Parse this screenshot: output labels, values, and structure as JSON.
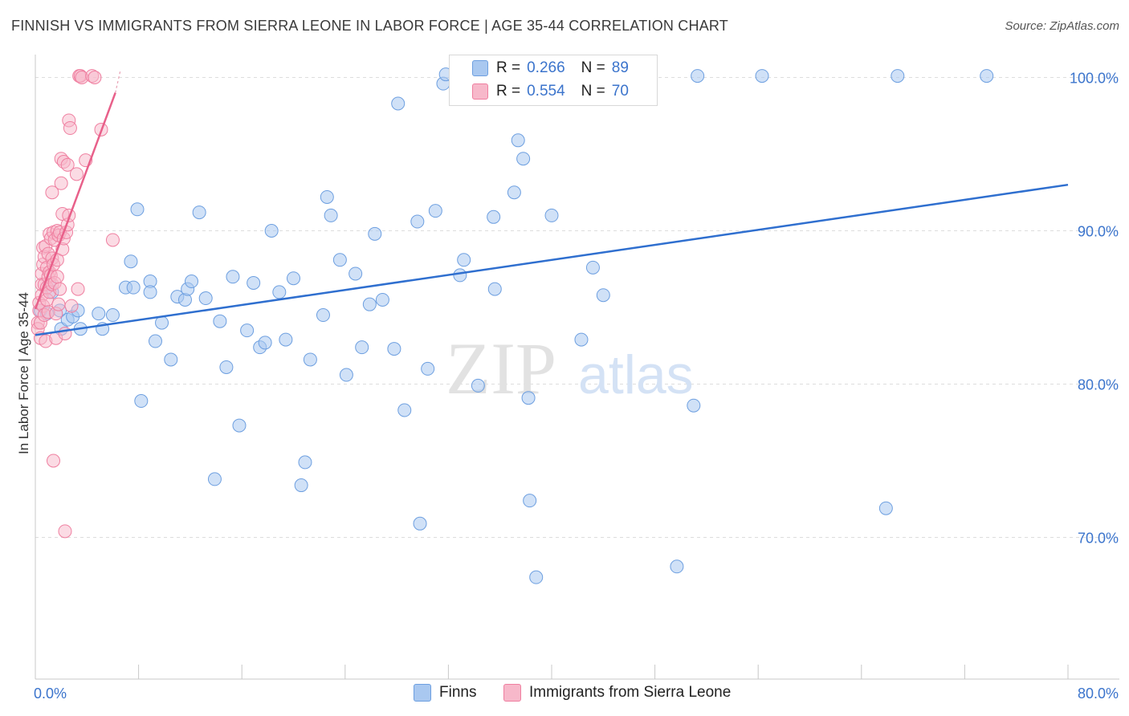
{
  "header": {
    "title": "FINNISH VS IMMIGRANTS FROM SIERRA LEONE IN LABOR FORCE | AGE 35-44 CORRELATION CHART",
    "source": "Source: ZipAtlas.com"
  },
  "legend": {
    "rows": [
      {
        "r_label": "R =",
        "r_value": "0.266",
        "n_label": "N =",
        "n_value": "89"
      },
      {
        "r_label": "R =",
        "r_value": "0.554",
        "n_label": "N =",
        "n_value": "70"
      }
    ]
  },
  "bottom_legend": {
    "finns": "Finns",
    "sierra": "Immigrants from Sierra Leone"
  },
  "watermark": {
    "zip": "ZIP",
    "atlas": "atlas"
  },
  "colors": {
    "finns_fill": "#a9c8f0",
    "finns_stroke": "#6d9fe0",
    "finns_line": "#2f6fcf",
    "sierra_fill": "#f7b8ca",
    "sierra_stroke": "#ef7fa0",
    "sierra_line": "#e8608a",
    "tick_label": "#3b74cc",
    "grid": "#dddddd"
  },
  "chart_data": {
    "type": "scatter",
    "title": "FINNISH VS IMMIGRANTS FROM SIERRA LEONE IN LABOR FORCE | AGE 35-44 CORRELATION CHART",
    "xlabel": "",
    "ylabel": "In Labor Force | Age 35-44",
    "xlim": [
      0,
      80
    ],
    "ylim": [
      60,
      102
    ],
    "x_tick_labels": [
      "0.0%",
      "80.0%"
    ],
    "y_ticks": [
      70,
      80,
      90,
      100
    ],
    "y_tick_labels": [
      "70.0%",
      "80.0%",
      "90.0%",
      "100.0%"
    ],
    "series": [
      {
        "name": "Finns",
        "R": 0.266,
        "N": 89,
        "trend": {
          "x": [
            0,
            80
          ],
          "y": [
            83.2,
            93.0
          ]
        },
        "points": [
          [
            0.4,
            84.8
          ],
          [
            0.9,
            84.6
          ],
          [
            1.1,
            86.6
          ],
          [
            1.3,
            86.0
          ],
          [
            1.9,
            84.8
          ],
          [
            2.0,
            83.6
          ],
          [
            2.5,
            84.2
          ],
          [
            2.9,
            84.4
          ],
          [
            3.3,
            84.8
          ],
          [
            3.5,
            83.6
          ],
          [
            4.9,
            84.6
          ],
          [
            5.2,
            83.6
          ],
          [
            6.0,
            84.5
          ],
          [
            7.0,
            86.3
          ],
          [
            7.4,
            88.0
          ],
          [
            7.6,
            86.3
          ],
          [
            7.9,
            91.4
          ],
          [
            8.2,
            78.9
          ],
          [
            8.9,
            86.7
          ],
          [
            8.9,
            86.0
          ],
          [
            9.3,
            82.8
          ],
          [
            9.8,
            84.0
          ],
          [
            10.5,
            81.6
          ],
          [
            11.0,
            85.7
          ],
          [
            11.6,
            85.5
          ],
          [
            11.8,
            86.2
          ],
          [
            12.1,
            86.7
          ],
          [
            12.7,
            91.2
          ],
          [
            13.2,
            85.6
          ],
          [
            13.9,
            73.8
          ],
          [
            14.3,
            84.1
          ],
          [
            14.8,
            81.1
          ],
          [
            15.3,
            87.0
          ],
          [
            15.8,
            77.3
          ],
          [
            16.4,
            83.5
          ],
          [
            16.9,
            86.6
          ],
          [
            17.4,
            82.4
          ],
          [
            17.8,
            82.7
          ],
          [
            18.3,
            90.0
          ],
          [
            18.9,
            86.0
          ],
          [
            19.4,
            82.9
          ],
          [
            20.0,
            86.9
          ],
          [
            20.6,
            73.4
          ],
          [
            20.9,
            74.9
          ],
          [
            21.3,
            81.6
          ],
          [
            22.3,
            84.5
          ],
          [
            22.6,
            92.2
          ],
          [
            22.9,
            91.0
          ],
          [
            23.6,
            88.1
          ],
          [
            24.1,
            80.6
          ],
          [
            24.8,
            87.2
          ],
          [
            25.3,
            82.4
          ],
          [
            25.9,
            85.2
          ],
          [
            26.3,
            89.8
          ],
          [
            26.9,
            85.5
          ],
          [
            27.8,
            82.3
          ],
          [
            28.1,
            98.3
          ],
          [
            28.6,
            78.3
          ],
          [
            29.6,
            90.6
          ],
          [
            29.8,
            70.9
          ],
          [
            30.4,
            81.0
          ],
          [
            31.0,
            91.3
          ],
          [
            31.6,
            99.6
          ],
          [
            31.8,
            100.2
          ],
          [
            32.9,
            87.1
          ],
          [
            33.2,
            88.1
          ],
          [
            34.3,
            79.9
          ],
          [
            34.8,
            100.1
          ],
          [
            35.5,
            90.9
          ],
          [
            35.6,
            86.2
          ],
          [
            37.1,
            92.5
          ],
          [
            37.4,
            95.9
          ],
          [
            37.8,
            94.7
          ],
          [
            38.2,
            79.1
          ],
          [
            38.3,
            72.4
          ],
          [
            38.8,
            67.4
          ],
          [
            40.0,
            91.0
          ],
          [
            40.6,
            100.0
          ],
          [
            42.3,
            82.9
          ],
          [
            43.2,
            87.6
          ],
          [
            44.0,
            85.8
          ],
          [
            44.6,
            100.1
          ],
          [
            49.7,
            68.1
          ],
          [
            51.0,
            78.6
          ],
          [
            51.3,
            100.1
          ],
          [
            56.3,
            100.1
          ],
          [
            65.9,
            71.9
          ],
          [
            66.8,
            100.1
          ],
          [
            73.7,
            100.1
          ]
        ]
      },
      {
        "name": "Immigrants from Sierra Leone",
        "R": 0.554,
        "N": 70,
        "trend": {
          "x": [
            0,
            6.2
          ],
          "y": [
            84.9,
            99.0
          ]
        },
        "trend_extension": {
          "x": [
            6.2,
            6.6
          ],
          "y": [
            99.0,
            100.5
          ]
        },
        "points": [
          [
            0.2,
            84.0
          ],
          [
            0.2,
            83.6
          ],
          [
            0.3,
            84.8
          ],
          [
            0.3,
            85.3
          ],
          [
            0.4,
            83.0
          ],
          [
            0.4,
            84.0
          ],
          [
            0.5,
            85.8
          ],
          [
            0.5,
            86.5
          ],
          [
            0.5,
            87.2
          ],
          [
            0.6,
            88.9
          ],
          [
            0.6,
            87.8
          ],
          [
            0.6,
            85.1
          ],
          [
            0.7,
            84.5
          ],
          [
            0.7,
            86.5
          ],
          [
            0.7,
            88.3
          ],
          [
            0.8,
            89.0
          ],
          [
            0.8,
            82.8
          ],
          [
            0.9,
            85.5
          ],
          [
            0.9,
            86.3
          ],
          [
            0.9,
            87.6
          ],
          [
            1.0,
            88.5
          ],
          [
            1.0,
            87.0
          ],
          [
            1.0,
            84.7
          ],
          [
            1.1,
            89.8
          ],
          [
            1.1,
            87.3
          ],
          [
            1.1,
            86.0
          ],
          [
            1.2,
            89.5
          ],
          [
            1.2,
            87.1
          ],
          [
            1.3,
            88.2
          ],
          [
            1.3,
            86.5
          ],
          [
            1.3,
            92.5
          ],
          [
            1.4,
            89.9
          ],
          [
            1.4,
            87.8
          ],
          [
            1.4,
            75.0
          ],
          [
            1.5,
            89.4
          ],
          [
            1.5,
            86.6
          ],
          [
            1.6,
            84.6
          ],
          [
            1.6,
            83.0
          ],
          [
            1.7,
            90.0
          ],
          [
            1.7,
            88.1
          ],
          [
            1.7,
            87.0
          ],
          [
            1.8,
            85.2
          ],
          [
            1.8,
            89.7
          ],
          [
            1.9,
            89.9
          ],
          [
            1.9,
            86.2
          ],
          [
            2.0,
            94.7
          ],
          [
            2.0,
            93.1
          ],
          [
            2.1,
            88.8
          ],
          [
            2.1,
            91.1
          ],
          [
            2.2,
            94.5
          ],
          [
            2.2,
            89.5
          ],
          [
            2.3,
            70.4
          ],
          [
            2.3,
            83.3
          ],
          [
            2.4,
            89.9
          ],
          [
            2.5,
            90.4
          ],
          [
            2.5,
            94.3
          ],
          [
            2.6,
            97.2
          ],
          [
            2.6,
            91.0
          ],
          [
            2.7,
            96.7
          ],
          [
            2.8,
            85.1
          ],
          [
            3.2,
            93.7
          ],
          [
            3.3,
            86.2
          ],
          [
            3.4,
            100.1
          ],
          [
            3.5,
            100.1
          ],
          [
            3.6,
            100.0
          ],
          [
            3.9,
            94.6
          ],
          [
            4.4,
            100.1
          ],
          [
            4.6,
            100.0
          ],
          [
            5.1,
            96.6
          ],
          [
            6.0,
            89.4
          ]
        ]
      }
    ]
  }
}
